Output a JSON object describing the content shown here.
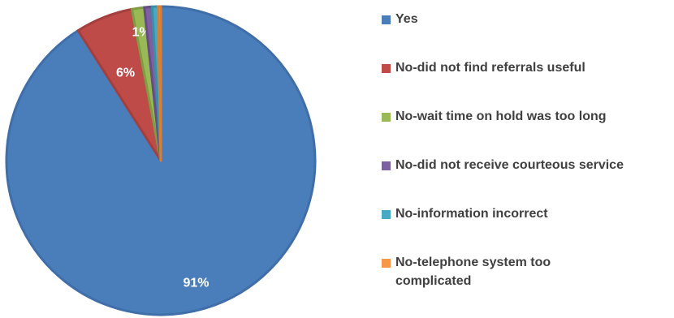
{
  "chart_data": {
    "type": "pie",
    "slices": [
      {
        "label": "Yes",
        "value": 91,
        "color": "#4a7ebb",
        "border": "#3f6ea8",
        "data_label": "91%"
      },
      {
        "label": "No-did not find referrals useful",
        "value": 6,
        "color": "#be4b48",
        "border": "#a33f3c",
        "data_label": "6%"
      },
      {
        "label": "No-wait time on hold was too long",
        "value": 1.3,
        "color": "#98b954",
        "border": "#7f9c43",
        "data_label": "1%"
      },
      {
        "label": "No-did not receive courteous service",
        "value": 0.8,
        "color": "#7d60a0",
        "border": "#664d86",
        "data_label": ""
      },
      {
        "label": "No-information incorrect",
        "value": 0.6,
        "color": "#46aac5",
        "border": "#3890a8",
        "data_label": ""
      },
      {
        "label": "No-telephone system too complicated",
        "value": 0.3,
        "color": "#f79646",
        "border": "#d97f34",
        "data_label": ""
      }
    ],
    "legend": {
      "placement": "right"
    }
  }
}
